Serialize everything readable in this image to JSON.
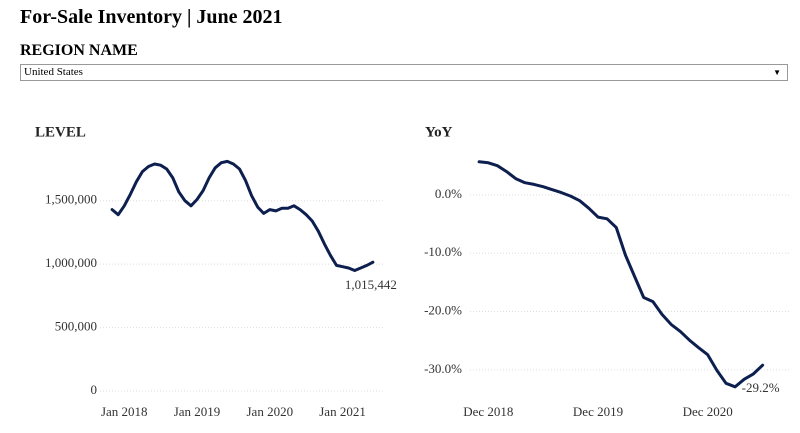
{
  "header": {
    "title": "For-Sale Inventory | June 2021"
  },
  "filter": {
    "label": "REGION NAME",
    "value": "United States"
  },
  "chart_data": [
    {
      "type": "line",
      "title": "LEVEL",
      "color": "#0d1f4f",
      "grid": true,
      "x": [
        "2017-11",
        "2017-12",
        "2018-01",
        "2018-02",
        "2018-03",
        "2018-04",
        "2018-05",
        "2018-06",
        "2018-07",
        "2018-08",
        "2018-09",
        "2018-10",
        "2018-11",
        "2018-12",
        "2019-01",
        "2019-02",
        "2019-03",
        "2019-04",
        "2019-05",
        "2019-06",
        "2019-07",
        "2019-08",
        "2019-09",
        "2019-10",
        "2019-11",
        "2019-12",
        "2020-01",
        "2020-02",
        "2020-03",
        "2020-04",
        "2020-05",
        "2020-06",
        "2020-07",
        "2020-08",
        "2020-09",
        "2020-10",
        "2020-11",
        "2020-12",
        "2021-01",
        "2021-02",
        "2021-03",
        "2021-04",
        "2021-05",
        "2021-06"
      ],
      "values": [
        1430000,
        1390000,
        1460000,
        1550000,
        1650000,
        1730000,
        1770000,
        1790000,
        1780000,
        1750000,
        1680000,
        1570000,
        1500000,
        1460000,
        1510000,
        1580000,
        1680000,
        1760000,
        1800000,
        1810000,
        1790000,
        1750000,
        1660000,
        1540000,
        1450000,
        1400000,
        1430000,
        1420000,
        1440000,
        1440000,
        1460000,
        1430000,
        1390000,
        1340000,
        1260000,
        1160000,
        1070000,
        990000,
        980000,
        970000,
        950000,
        970000,
        990000,
        1015442
      ],
      "value_labels": [
        null,
        null,
        null,
        null,
        null,
        null,
        null,
        null,
        null,
        null,
        null,
        null,
        null,
        null,
        null,
        null,
        null,
        null,
        null,
        null,
        null,
        null,
        null,
        null,
        null,
        null,
        null,
        null,
        null,
        null,
        null,
        null,
        null,
        null,
        null,
        null,
        null,
        null,
        null,
        null,
        null,
        null,
        null,
        "1,015,442"
      ],
      "xlim": [
        "2017-09",
        "2021-08"
      ],
      "xticks": [
        {
          "value": "2018-01",
          "label": "Jan 2018"
        },
        {
          "value": "2019-01",
          "label": "Jan 2019"
        },
        {
          "value": "2020-01",
          "label": "Jan 2020"
        },
        {
          "value": "2021-01",
          "label": "Jan 2021"
        }
      ],
      "ylim": [
        0,
        1900000
      ],
      "yticks": [
        0,
        {
          "value": 500000,
          "label": "500,000"
        },
        {
          "value": 1000000,
          "label": "1,000,000"
        },
        {
          "value": 1500000,
          "label": "1,500,000"
        }
      ]
    },
    {
      "type": "line",
      "title": "YoY",
      "color": "#0d1f4f",
      "grid": true,
      "x": [
        "2018-11",
        "2018-12",
        "2019-01",
        "2019-02",
        "2019-03",
        "2019-04",
        "2019-05",
        "2019-06",
        "2019-07",
        "2019-08",
        "2019-09",
        "2019-10",
        "2019-11",
        "2019-12",
        "2020-01",
        "2020-02",
        "2020-03",
        "2020-04",
        "2020-05",
        "2020-06",
        "2020-07",
        "2020-08",
        "2020-09",
        "2020-10",
        "2020-11",
        "2020-12",
        "2021-01",
        "2021-02",
        "2021-03",
        "2021-04",
        "2021-05",
        "2021-06"
      ],
      "values": [
        5.7,
        5.5,
        5.0,
        4.0,
        2.8,
        2.1,
        1.8,
        1.4,
        0.9,
        0.4,
        -0.2,
        -1.0,
        -2.3,
        -3.8,
        -4.1,
        -5.6,
        -10.3,
        -14.0,
        -17.6,
        -18.3,
        -20.5,
        -22.2,
        -23.4,
        -24.9,
        -26.2,
        -27.4,
        -30.1,
        -32.3,
        -32.9,
        -31.6,
        -30.7,
        -29.2
      ],
      "value_labels": [
        null,
        null,
        null,
        null,
        null,
        null,
        null,
        null,
        null,
        null,
        null,
        null,
        null,
        null,
        null,
        null,
        null,
        null,
        null,
        null,
        null,
        null,
        null,
        null,
        null,
        null,
        null,
        null,
        null,
        null,
        null,
        "-29.2%"
      ],
      "xlim": [
        "2018-10",
        "2021-09"
      ],
      "xticks": [
        {
          "value": "2018-12",
          "label": "Dec 2018"
        },
        {
          "value": "2019-12",
          "label": "Dec 2019"
        },
        {
          "value": "2020-12",
          "label": "Dec 2020"
        }
      ],
      "ylim": [
        -33.8,
        7.7
      ],
      "yticks": [
        {
          "value": -30,
          "label": "-30.0%"
        },
        {
          "value": -20,
          "label": "-20.0%"
        },
        {
          "value": -10,
          "label": "-10.0%"
        },
        {
          "value": 0,
          "label": "0.0%"
        }
      ]
    }
  ]
}
